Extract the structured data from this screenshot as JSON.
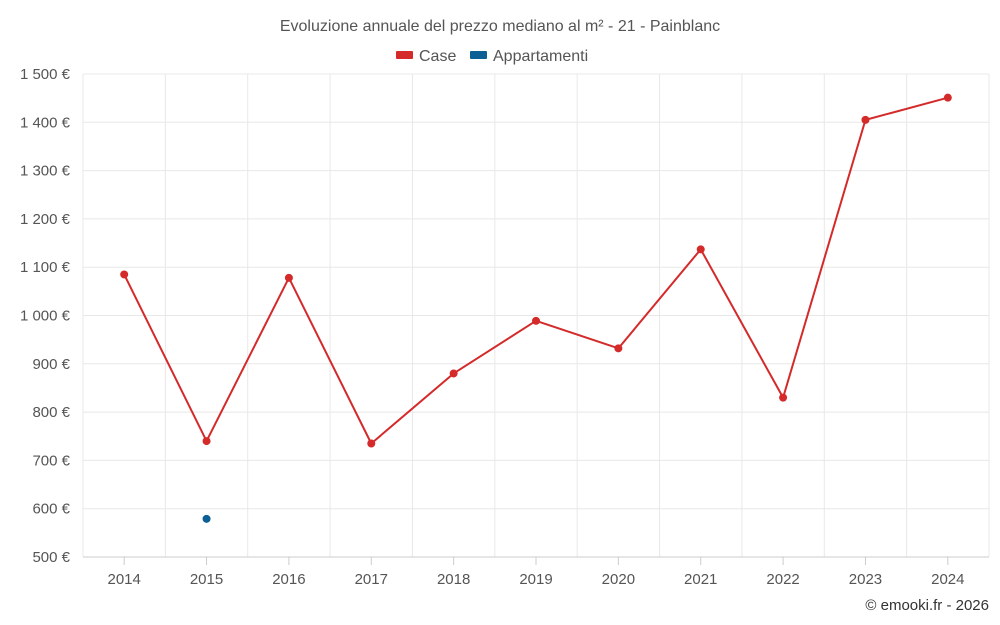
{
  "chart_data": {
    "type": "line",
    "title": "Evoluzione annuale del prezzo mediano al m² - 21 - Painblanc",
    "categories": [
      "2014",
      "2015",
      "2016",
      "2017",
      "2018",
      "2019",
      "2020",
      "2021",
      "2022",
      "2023",
      "2024"
    ],
    "series": [
      {
        "name": "Case",
        "color": "#d42a2a",
        "values": [
          1085,
          740,
          1078,
          735,
          880,
          989,
          932,
          1137,
          830,
          1405,
          1451
        ]
      },
      {
        "name": "Appartamenti",
        "color": "#0b5f95",
        "values": [
          null,
          579,
          null,
          null,
          null,
          null,
          null,
          null,
          null,
          null,
          null
        ]
      }
    ],
    "ylim": [
      500,
      1500
    ],
    "yticks": [
      500,
      600,
      700,
      800,
      900,
      1000,
      1100,
      1200,
      1300,
      1400,
      1500
    ],
    "ytick_labels": [
      "500 €",
      "600 €",
      "700 €",
      "800 €",
      "900 €",
      "1 000 €",
      "1 100 €",
      "1 200 €",
      "1 300 €",
      "1 400 €",
      "1 500 €"
    ],
    "grid": true,
    "legend_position": "top-center",
    "credit": "© emooki.fr - 2026"
  }
}
